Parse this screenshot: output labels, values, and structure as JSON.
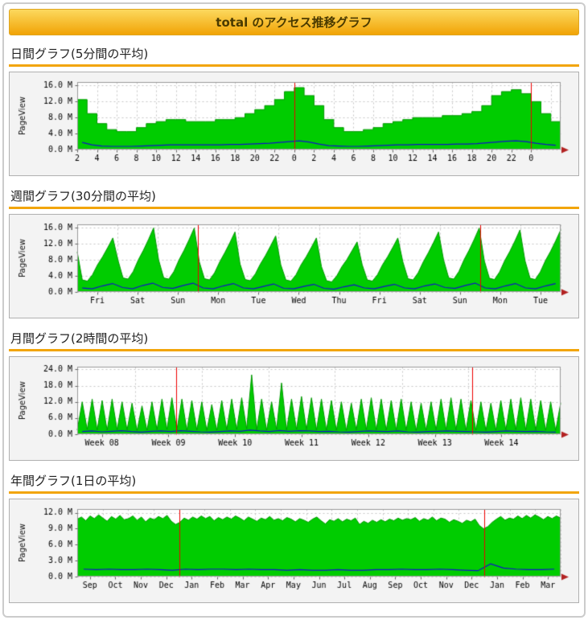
{
  "page": {
    "title": "total のアクセス推移グラフ",
    "sections": [
      {
        "id": "daily",
        "title": "日間グラフ(5分間の平均)"
      },
      {
        "id": "weekly",
        "title": "週間グラフ(30分間の平均)"
      },
      {
        "id": "monthly",
        "title": "月間グラフ(2時間の平均)"
      },
      {
        "id": "yearly",
        "title": "年間グラフ(1日の平均)"
      }
    ],
    "colors": {
      "area": "#00cc00",
      "area_edge": "#009900",
      "line": "#1111cc",
      "marker": "#ee0000",
      "arrow": "#b22222",
      "accent": "#f2a50a"
    }
  },
  "chart_data": [
    {
      "name": "daily",
      "type": "area",
      "style": "step",
      "title": "日間グラフ(5分間の平均)",
      "ylabel": "PageView",
      "y_max": 16.9,
      "x_domain": 49,
      "y_ticks": [
        [
          0,
          "0.0 M"
        ],
        [
          4,
          "4.0 M"
        ],
        [
          8,
          "8.0 M"
        ],
        [
          12,
          "12.0 M"
        ],
        [
          16,
          "16.0 M"
        ]
      ],
      "x_ticks": [
        [
          0,
          "2"
        ],
        [
          2,
          "4"
        ],
        [
          4,
          "6"
        ],
        [
          6,
          "8"
        ],
        [
          8,
          "10"
        ],
        [
          10,
          "12"
        ],
        [
          12,
          "14"
        ],
        [
          14,
          "16"
        ],
        [
          16,
          "18"
        ],
        [
          18,
          "20"
        ],
        [
          20,
          "22"
        ],
        [
          22,
          "0"
        ],
        [
          24,
          "2"
        ],
        [
          26,
          "4"
        ],
        [
          28,
          "6"
        ],
        [
          30,
          "8"
        ],
        [
          32,
          "10"
        ],
        [
          34,
          "12"
        ],
        [
          36,
          "14"
        ],
        [
          38,
          "16"
        ],
        [
          40,
          "18"
        ],
        [
          42,
          "20"
        ],
        [
          44,
          "22"
        ],
        [
          46,
          "0"
        ]
      ],
      "v_grid": [
        0,
        2,
        4,
        6,
        8,
        10,
        12,
        14,
        16,
        18,
        20,
        22,
        24,
        26,
        28,
        30,
        32,
        34,
        36,
        38,
        40,
        42,
        44,
        46,
        48
      ],
      "red_lines": [
        22,
        46
      ],
      "marker_color": "#ee0000",
      "arrow_color": "#b22222",
      "series": [
        {
          "name": "pageview-area",
          "draw": "area-step",
          "color": "#00cc00",
          "edge": "#009900",
          "values": [
            12.5,
            9.0,
            6.5,
            5.0,
            4.5,
            4.5,
            5.5,
            6.5,
            7.0,
            7.5,
            7.5,
            7.0,
            7.0,
            7.0,
            7.5,
            7.5,
            8.0,
            9.0,
            10.0,
            11.0,
            12.5,
            14.5,
            15.5,
            13.5,
            11.0,
            7.5,
            5.5,
            4.5,
            4.5,
            5.0,
            5.5,
            6.5,
            7.0,
            7.5,
            8.0,
            8.0,
            8.0,
            8.5,
            8.5,
            9.0,
            9.5,
            11.0,
            13.5,
            14.5,
            15.0,
            14.0,
            12.0,
            9.0,
            7.0
          ]
        },
        {
          "name": "secondary-line",
          "draw": "line",
          "color": "#1111cc",
          "values": [
            1.8,
            1.2,
            0.9,
            0.8,
            0.8,
            0.8,
            0.9,
            1.0,
            1.1,
            1.2,
            1.2,
            1.2,
            1.2,
            1.2,
            1.2,
            1.3,
            1.3,
            1.4,
            1.5,
            1.6,
            1.8,
            2.0,
            2.2,
            1.9,
            1.4,
            1.0,
            0.9,
            0.8,
            0.8,
            0.9,
            1.0,
            1.1,
            1.2,
            1.2,
            1.3,
            1.3,
            1.3,
            1.3,
            1.4,
            1.4,
            1.5,
            1.7,
            1.9,
            2.1,
            2.2,
            2.0,
            1.6,
            1.3,
            1.1
          ]
        }
      ]
    },
    {
      "name": "weekly",
      "type": "area",
      "style": "line",
      "title": "週間グラフ(30分間の平均)",
      "ylabel": "PageView",
      "y_max": 16.9,
      "x_domain": 96,
      "y_ticks": [
        [
          0,
          "0.0 M"
        ],
        [
          4,
          "4.0 M"
        ],
        [
          8,
          "8.0 M"
        ],
        [
          12,
          "12.0 M"
        ],
        [
          16,
          "16.0 M"
        ]
      ],
      "x_ticks": [
        [
          4,
          "Fri"
        ],
        [
          12,
          "Sat"
        ],
        [
          20,
          "Sun"
        ],
        [
          28,
          "Mon"
        ],
        [
          36,
          "Tue"
        ],
        [
          44,
          "Wed"
        ],
        [
          52,
          "Thu"
        ],
        [
          60,
          "Fri"
        ],
        [
          68,
          "Sat"
        ],
        [
          76,
          "Sun"
        ],
        [
          84,
          "Mon"
        ],
        [
          92,
          "Tue"
        ]
      ],
      "v_grid": [
        0,
        8,
        16,
        24,
        32,
        40,
        48,
        56,
        64,
        72,
        80,
        88,
        96
      ],
      "red_lines": [
        24,
        80
      ],
      "marker_color": "#ee0000",
      "arrow_color": "#b22222",
      "series": [
        {
          "name": "pageview-area",
          "draw": "area",
          "color": "#00cc00",
          "edge": "#009900",
          "values": [
            10.0,
            3.0,
            2.7,
            4.3,
            6.8,
            8.8,
            11.1,
            13.5,
            8.0,
            3.5,
            3.2,
            5.1,
            8.0,
            10.4,
            13.1,
            16.0,
            8.0,
            3.5,
            3.2,
            5.1,
            8.0,
            10.4,
            13.1,
            16.0,
            7.5,
            3.3,
            3.0,
            4.8,
            7.5,
            9.8,
            12.3,
            15.0,
            7.0,
            3.1,
            2.8,
            4.5,
            7.0,
            9.1,
            11.5,
            14.0,
            6.8,
            3.0,
            2.7,
            4.3,
            6.8,
            8.8,
            11.1,
            13.5,
            6.3,
            2.8,
            2.5,
            4.0,
            6.3,
            8.1,
            10.3,
            12.5,
            6.8,
            3.0,
            2.7,
            4.3,
            6.8,
            8.8,
            11.1,
            13.5,
            7.5,
            3.3,
            3.0,
            4.8,
            7.5,
            9.8,
            12.3,
            15.0,
            8.0,
            3.5,
            3.2,
            5.1,
            8.0,
            10.4,
            13.1,
            16.0,
            7.8,
            3.4,
            3.1,
            5.0,
            7.8,
            10.1,
            12.7,
            15.5,
            7.8,
            3.4,
            3.1,
            5.0,
            7.8,
            10.1,
            12.7,
            15.5
          ]
        },
        {
          "name": "secondary-line",
          "draw": "line",
          "color": "#1111cc",
          "values": [
            1.0,
            0.8,
            1.5,
            2.1,
            1.1,
            0.8,
            1.6,
            2.2,
            1.1,
            0.9,
            1.6,
            2.2,
            1.0,
            0.8,
            1.5,
            2.1,
            1.0,
            0.8,
            1.4,
            2.0,
            0.9,
            0.8,
            1.4,
            1.9,
            0.9,
            0.7,
            1.3,
            1.8,
            1.0,
            0.8,
            1.4,
            1.9,
            1.0,
            0.8,
            1.5,
            2.0,
            1.1,
            0.9,
            1.6,
            2.2,
            1.0,
            0.8,
            1.5,
            2.1,
            1.0,
            0.8,
            1.5,
            2.1
          ]
        }
      ]
    },
    {
      "name": "monthly",
      "type": "area",
      "style": "line",
      "title": "月間グラフ(2時間の平均)",
      "ylabel": "PageView",
      "y_max": 25,
      "x_domain": 98,
      "y_ticks": [
        [
          0,
          "0.0 M"
        ],
        [
          6,
          "6.0 M"
        ],
        [
          12,
          "12.0 M"
        ],
        [
          18,
          "18.0 M"
        ],
        [
          24,
          "24.0 M"
        ]
      ],
      "x_ticks": [
        [
          5,
          "Week 08"
        ],
        [
          18.5,
          "Week 09"
        ],
        [
          32,
          "Week 10"
        ],
        [
          45.5,
          "Week 11"
        ],
        [
          59,
          "Week 12"
        ],
        [
          72.5,
          "Week 13"
        ],
        [
          86,
          "Week 14"
        ]
      ],
      "v_grid": [
        11.8,
        25.2,
        38.8,
        52.2,
        65.8,
        79.2,
        92.8
      ],
      "red_lines": [
        20,
        80
      ],
      "marker_color": "#ee0000",
      "arrow_color": "#b22222",
      "series": [
        {
          "name": "pageview-area",
          "draw": "area",
          "color": "#00cc00",
          "edge": "#009900",
          "values": [
            1.5,
            12,
            1.8,
            13,
            1.6,
            12.5,
            1.5,
            13,
            1.7,
            12,
            1.6,
            11.5,
            1.4,
            10.5,
            1.5,
            12,
            1.7,
            13,
            1.8,
            13.5,
            1.6,
            13,
            1.5,
            12.5,
            1.6,
            12,
            1.4,
            11,
            1.5,
            12.5,
            1.7,
            13,
            1.8,
            13.5,
            2.0,
            22,
            1.6,
            13,
            1.5,
            12,
            1.8,
            19,
            1.6,
            13,
            1.8,
            14,
            1.7,
            13.5,
            1.6,
            13,
            1.5,
            12.5,
            1.5,
            12,
            1.4,
            11.5,
            1.6,
            13,
            1.7,
            13.5,
            1.6,
            13,
            1.5,
            12.5,
            1.6,
            13,
            1.5,
            12,
            1.4,
            11.5,
            1.5,
            12,
            1.6,
            13,
            1.7,
            13.5,
            1.6,
            13,
            1.5,
            12.5,
            1.5,
            12,
            1.4,
            11.5,
            1.5,
            12.5,
            1.6,
            13,
            1.7,
            13.5,
            1.6,
            13,
            1.5,
            12.5,
            1.5,
            12,
            1.4,
            11.5
          ]
        },
        {
          "name": "secondary-line",
          "draw": "line",
          "color": "#1111cc",
          "values": [
            1.0,
            1.2,
            0.9,
            1.1,
            1.3,
            1.0,
            0.8,
            1.1,
            1.2,
            1.0,
            1.3,
            1.1,
            0.9,
            0.8,
            1.0,
            1.2,
            1.1,
            1.5,
            1.2,
            1.0,
            1.4,
            1.1,
            1.3,
            1.2,
            1.0,
            1.1,
            0.9,
            0.8,
            1.0,
            1.2,
            1.1,
            1.0,
            1.2,
            0.9,
            0.8,
            1.0,
            1.1,
            1.2,
            1.1,
            1.0,
            0.9,
            0.8,
            1.0,
            1.2,
            1.1,
            1.0,
            1.1,
            0.9,
            0.8
          ]
        }
      ]
    },
    {
      "name": "yearly",
      "type": "area",
      "style": "line",
      "title": "年間グラフ(1日の平均)",
      "ylabel": "PageView",
      "y_max": 12.7,
      "x_domain": 114,
      "y_ticks": [
        [
          0,
          "0.0 M"
        ],
        [
          3,
          "3.0 M"
        ],
        [
          6,
          "6.0 M"
        ],
        [
          9,
          "9.0 M"
        ],
        [
          12,
          "12.0 M"
        ]
      ],
      "x_ticks": [
        [
          3,
          "Sep"
        ],
        [
          9,
          "Oct"
        ],
        [
          15,
          "Nov"
        ],
        [
          21,
          "Dec"
        ],
        [
          27,
          "Jan"
        ],
        [
          33,
          "Feb"
        ],
        [
          39,
          "Mar"
        ],
        [
          45,
          "Apr"
        ],
        [
          51,
          "May"
        ],
        [
          57,
          "Jun"
        ],
        [
          63,
          "Jul"
        ],
        [
          69,
          "Aug"
        ],
        [
          75,
          "Sep"
        ],
        [
          81,
          "Oct"
        ],
        [
          87,
          "Nov"
        ],
        [
          93,
          "Dec"
        ],
        [
          99,
          "Jan"
        ],
        [
          105,
          "Feb"
        ],
        [
          111,
          "Mar"
        ]
      ],
      "v_grid": [
        0,
        6,
        12,
        18,
        24,
        30,
        36,
        42,
        48,
        54,
        60,
        66,
        72,
        78,
        84,
        90,
        96,
        102,
        108,
        114
      ],
      "red_lines": [
        24,
        96
      ],
      "marker_color": "#ee0000",
      "arrow_color": "#b22222",
      "series": [
        {
          "name": "pageview-area",
          "draw": "area",
          "color": "#00cc00",
          "edge": "#009900",
          "values": [
            10.8,
            11.2,
            10.5,
            11.4,
            10.9,
            11.6,
            11.0,
            10.4,
            11.3,
            10.8,
            11.5,
            10.7,
            10.9,
            11.4,
            10.6,
            11.2,
            10.3,
            11.0,
            10.7,
            11.3,
            10.9,
            11.5,
            10.4,
            9.8,
            10.2,
            11.0,
            10.6,
            11.2,
            10.8,
            11.4,
            10.9,
            11.3,
            10.5,
            11.1,
            10.7,
            11.2,
            10.8,
            11.4,
            11.0,
            10.5,
            11.2,
            10.8,
            10.4,
            11.0,
            10.7,
            11.3,
            10.6,
            10.9,
            10.5,
            11.1,
            10.8,
            10.3,
            10.9,
            10.6,
            10.2,
            10.8,
            11.2,
            10.5,
            9.9,
            10.7,
            10.4,
            10.9,
            10.3,
            10.8,
            10.5,
            11.0,
            9.8,
            10.4,
            10.0,
            10.6,
            10.2,
            10.7,
            10.3,
            10.8,
            10.5,
            11.0,
            10.6,
            10.9,
            10.7,
            11.1,
            10.4,
            10.9,
            10.6,
            11.2,
            10.5,
            11.0,
            10.8,
            10.2,
            10.7,
            10.4,
            10.0,
            10.6,
            10.3,
            10.8,
            9.6,
            9.0,
            9.4,
            10.2,
            10.8,
            11.3,
            10.6,
            11.0,
            10.8,
            11.4,
            10.9,
            11.5,
            11.0,
            11.6,
            11.2,
            10.7,
            11.3,
            10.9,
            11.4,
            11.0
          ]
        },
        {
          "name": "secondary-line",
          "draw": "line",
          "color": "#1111cc",
          "values": [
            1.4,
            1.3,
            1.4,
            1.3,
            1.3,
            1.4,
            1.3,
            1.2,
            1.4,
            1.3,
            1.4,
            1.4,
            1.3,
            1.4,
            1.3,
            1.3,
            1.2,
            1.3,
            1.2,
            1.2,
            1.3,
            1.2,
            1.2,
            1.3,
            1.3,
            1.4,
            1.3,
            1.3,
            1.4,
            1.3,
            1.2,
            1.1,
            2.4,
            1.6,
            1.4,
            1.3,
            1.3,
            1.4
          ]
        }
      ]
    }
  ]
}
